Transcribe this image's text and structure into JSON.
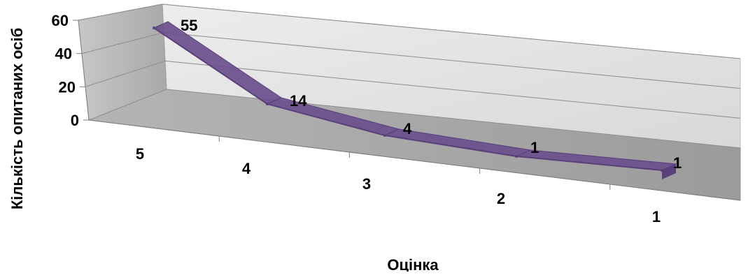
{
  "chart_data": {
    "type": "line",
    "style": "3d-ribbon",
    "categories": [
      "5",
      "4",
      "3",
      "2",
      "1"
    ],
    "series": [
      {
        "values": [
          55,
          14,
          4,
          1,
          1
        ]
      }
    ],
    "data_labels": [
      "55",
      "14",
      "4",
      "1",
      "1"
    ],
    "xlabel": "Оцінка",
    "ylabel": "Кількість опитаних осіб",
    "ylim": [
      0,
      60
    ],
    "yticks": [
      "0",
      "20",
      "40",
      "60"
    ],
    "grid": true,
    "legend": "none",
    "colors": {
      "ribbon_fill": "#6b4f8c",
      "ribbon_edge": "#5a3f7a",
      "back_wall": "#e6e6e6",
      "side_wall": "#b5b5b5",
      "floor": "#a7a7a7",
      "grid_line": "#8c8c8c"
    }
  }
}
